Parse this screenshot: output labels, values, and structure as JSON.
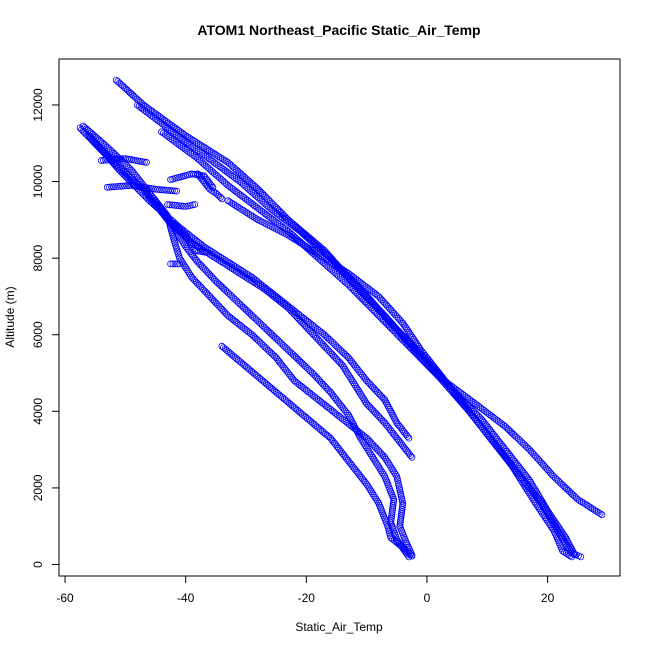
{
  "chart_data": {
    "type": "scatter",
    "title": "ATOM1 Northeast_Pacific Static_Air_Temp",
    "xlabel": "Static_Air_Temp",
    "ylabel": "Altitude (m)",
    "xlim": [
      -61,
      32
    ],
    "ylim": [
      -300,
      13200
    ],
    "xticks": [
      -60,
      -40,
      -20,
      0,
      20
    ],
    "yticks": [
      0,
      2000,
      4000,
      6000,
      8000,
      10000,
      12000
    ],
    "marker": "open-circle",
    "color": "#0000ff",
    "grid": false,
    "legend": "none",
    "profiles": [
      [
        [
          -51.5,
          12650
        ],
        [
          -47,
          12000
        ],
        [
          -40,
          11200
        ],
        [
          -33,
          10500
        ],
        [
          -28,
          9800
        ],
        [
          -23,
          9000
        ],
        [
          -17,
          8200
        ],
        [
          -12,
          7300
        ],
        [
          -7,
          6500
        ],
        [
          -2,
          5600
        ],
        [
          2,
          4900
        ],
        [
          7,
          4000
        ],
        [
          11,
          3200
        ],
        [
          15,
          2400
        ],
        [
          19,
          1600
        ],
        [
          22,
          800
        ],
        [
          24,
          300
        ],
        [
          25.5,
          200
        ]
      ],
      [
        [
          -48,
          12000
        ],
        [
          -43,
          11400
        ],
        [
          -37,
          10700
        ],
        [
          -31,
          10000
        ],
        [
          -26,
          9300
        ],
        [
          -21,
          8700
        ],
        [
          -16,
          8000
        ],
        [
          -11,
          7200
        ],
        [
          -6,
          6300
        ],
        [
          -1,
          5500
        ],
        [
          4,
          4600
        ],
        [
          9,
          3800
        ],
        [
          13,
          3000
        ],
        [
          17,
          2200
        ],
        [
          20,
          1400
        ],
        [
          23,
          700
        ],
        [
          24.5,
          250
        ]
      ],
      [
        [
          -44,
          11300
        ],
        [
          -38,
          10600
        ],
        [
          -33,
          9900
        ],
        [
          -28,
          9300
        ],
        [
          -23,
          8700
        ],
        [
          -18,
          8000
        ],
        [
          -13,
          7300
        ],
        [
          -8,
          6500
        ],
        [
          -3,
          5700
        ],
        [
          2,
          4900
        ],
        [
          8,
          4200
        ],
        [
          13,
          3600
        ],
        [
          17,
          3000
        ],
        [
          21,
          2300
        ],
        [
          25,
          1700
        ],
        [
          29,
          1300
        ]
      ],
      [
        [
          -33,
          9500
        ],
        [
          -28,
          9000
        ],
        [
          -23,
          8600
        ],
        [
          -18,
          8100
        ],
        [
          -13,
          7600
        ],
        [
          -8,
          7000
        ],
        [
          -4,
          6300
        ],
        [
          -1,
          5600
        ],
        [
          4,
          4600
        ],
        [
          9,
          3600
        ],
        [
          14,
          2600
        ],
        [
          18,
          1600
        ],
        [
          21,
          900
        ],
        [
          22.5,
          350
        ],
        [
          24,
          200
        ]
      ],
      [
        [
          -38,
          10200
        ],
        [
          -36,
          9800
        ],
        [
          -35,
          9700
        ],
        [
          -34,
          9550
        ]
      ],
      [
        [
          -57.5,
          11400
        ],
        [
          -52,
          10500
        ],
        [
          -47,
          9800
        ],
        [
          -43,
          9000
        ],
        [
          -39,
          8400
        ],
        [
          -35,
          8000
        ],
        [
          -31,
          7600
        ],
        [
          -27,
          7200
        ],
        [
          -23,
          6700
        ],
        [
          -20,
          6200
        ],
        [
          -17,
          5700
        ],
        [
          -14,
          5200
        ],
        [
          -12,
          4700
        ],
        [
          -10,
          4200
        ],
        [
          -7,
          3700
        ],
        [
          -4.5,
          3200
        ],
        [
          -2.5,
          2800
        ]
      ],
      [
        [
          -56,
          11200
        ],
        [
          -51,
          10300
        ],
        [
          -46,
          9500
        ],
        [
          -41,
          8800
        ],
        [
          -37,
          8300
        ],
        [
          -33,
          7900
        ],
        [
          -29,
          7500
        ],
        [
          -25,
          7000
        ],
        [
          -21,
          6500
        ],
        [
          -17,
          6000
        ],
        [
          -13,
          5400
        ],
        [
          -10,
          4800
        ],
        [
          -7,
          4300
        ],
        [
          -5,
          3700
        ],
        [
          -3,
          3300
        ]
      ],
      [
        [
          -57,
          11450
        ],
        [
          -53,
          10900
        ],
        [
          -49,
          10300
        ],
        [
          -46,
          9700
        ],
        [
          -43,
          9100
        ],
        [
          -42,
          8500
        ],
        [
          -41,
          8000
        ],
        [
          -39,
          7500
        ],
        [
          -36,
          7000
        ],
        [
          -33,
          6500
        ],
        [
          -29,
          6000
        ],
        [
          -25,
          5400
        ],
        [
          -22,
          4800
        ],
        [
          -18,
          4300
        ],
        [
          -14,
          3800
        ],
        [
          -10,
          3300
        ],
        [
          -7,
          2800
        ],
        [
          -5,
          2300
        ],
        [
          -4,
          1600
        ],
        [
          -4.5,
          1000
        ],
        [
          -3.5,
          600
        ],
        [
          -2.5,
          250
        ]
      ],
      [
        [
          -45,
          9500
        ],
        [
          -42,
          8800
        ],
        [
          -40,
          8300
        ],
        [
          -38,
          7900
        ],
        [
          -35,
          7400
        ],
        [
          -31,
          6800
        ],
        [
          -27,
          6200
        ],
        [
          -23,
          5600
        ],
        [
          -19,
          5000
        ],
        [
          -16,
          4500
        ],
        [
          -13,
          3900
        ],
        [
          -11,
          3300
        ],
        [
          -9,
          2800
        ],
        [
          -7,
          2300
        ],
        [
          -5.5,
          1700
        ],
        [
          -6,
          1100
        ],
        [
          -5,
          650
        ],
        [
          -3,
          200
        ]
      ],
      [
        [
          -34,
          5700
        ],
        [
          -31,
          5300
        ],
        [
          -28,
          4900
        ],
        [
          -25,
          4500
        ],
        [
          -22,
          4100
        ],
        [
          -19,
          3700
        ],
        [
          -16,
          3300
        ],
        [
          -14,
          2900
        ],
        [
          -12,
          2500
        ],
        [
          -10,
          2100
        ],
        [
          -8,
          1600
        ],
        [
          -6.5,
          1000
        ],
        [
          -6,
          700
        ],
        [
          -4,
          450
        ],
        [
          -2.5,
          220
        ]
      ],
      [
        [
          -54,
          10550
        ],
        [
          -50,
          10600
        ],
        [
          -46.5,
          10500
        ]
      ],
      [
        [
          -53,
          9850
        ],
        [
          -49,
          9900
        ],
        [
          -45,
          9800
        ],
        [
          -41.5,
          9750
        ]
      ],
      [
        [
          -42.5,
          10050
        ],
        [
          -39,
          10200
        ],
        [
          -37,
          10150
        ],
        [
          -35.5,
          9850
        ]
      ],
      [
        [
          -43,
          9400
        ],
        [
          -40,
          9350
        ],
        [
          -38.5,
          9400
        ]
      ],
      [
        [
          -42,
          8900
        ],
        [
          -40,
          8600
        ],
        [
          -38.5,
          8200
        ],
        [
          -36.5,
          8150
        ]
      ],
      [
        [
          -42.5,
          7850
        ],
        [
          -41,
          7850
        ]
      ]
    ]
  }
}
